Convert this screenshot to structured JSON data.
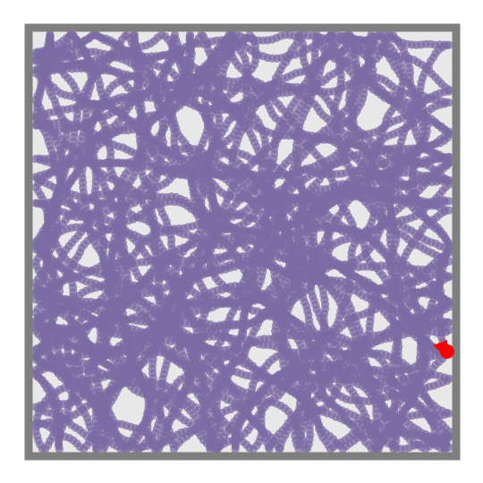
{
  "colors": {
    "background": "#ffffff",
    "floor": "#e8e8e8",
    "wall": "#7f7f7f",
    "trail": "#7b6ba3",
    "agent": "#ff0000"
  },
  "icons": {
    "agent": "agent-marker-icon"
  },
  "trail": {
    "opacity": 0.72,
    "seed": 8123
  }
}
